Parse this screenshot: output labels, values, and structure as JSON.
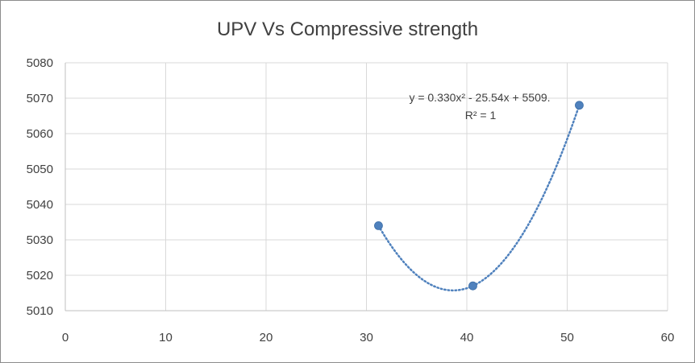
{
  "chart_data": {
    "type": "scatter",
    "title": "UPV  Vs Compressive strength",
    "xlabel": "",
    "ylabel": "",
    "xlim": [
      0,
      60
    ],
    "ylim": [
      5010,
      5080
    ],
    "xticks": [
      0,
      10,
      20,
      30,
      40,
      50,
      60
    ],
    "yticks": [
      5010,
      5020,
      5030,
      5040,
      5050,
      5060,
      5070,
      5080
    ],
    "grid": true,
    "legend": "none",
    "series": [
      {
        "points": [
          {
            "x": 31.2,
            "y": 5034
          },
          {
            "x": 40.6,
            "y": 5017
          },
          {
            "x": 51.2,
            "y": 5068
          }
        ],
        "color": "#4f81bd"
      }
    ],
    "trendline": {
      "type": "polynomial",
      "order": 2,
      "equation": "y = 0.330x² - 25.54x + 5509.",
      "r_squared": "R² = 1",
      "color": "#4f81bd",
      "style": "dotted"
    }
  }
}
